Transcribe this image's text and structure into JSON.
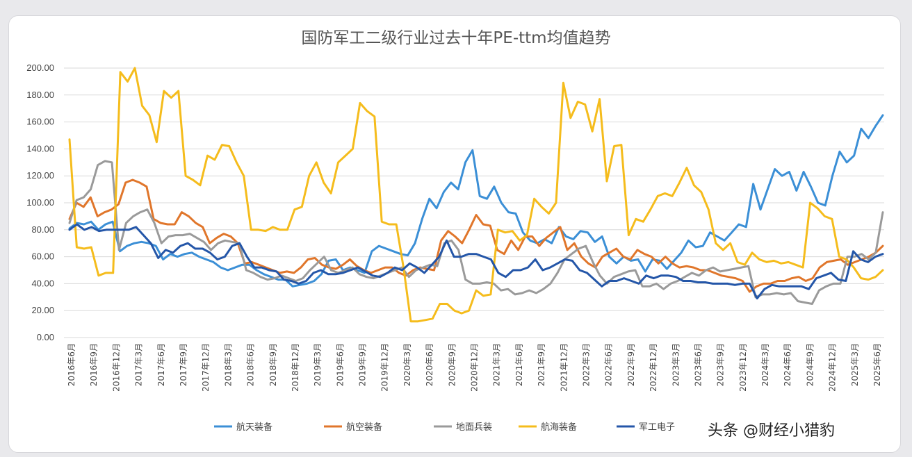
{
  "chart_data": {
    "type": "line",
    "title": "国防军工二级行业过去十年PE-ttm均值趋势",
    "ylim": [
      0,
      200
    ],
    "yticks": [
      "0.00",
      "20.00",
      "40.00",
      "60.00",
      "80.00",
      "100.00",
      "120.00",
      "140.00",
      "160.00",
      "180.00",
      "200.00"
    ],
    "grid": "horizontal",
    "legend_position": "bottom",
    "x_tick_labels": [
      "2016年6月",
      "2016年9月",
      "2016年12月",
      "2017年3月",
      "2017年6月",
      "2017年9月",
      "2017年12月",
      "2018年3月",
      "2018年6月",
      "2018年9月",
      "2018年12月",
      "2019年3月",
      "2019年6月",
      "2019年9月",
      "2019年12月",
      "2020年3月",
      "2020年6月",
      "2020年9月",
      "2020年12月",
      "2021年3月",
      "2021年6月",
      "2021年9月",
      "2021年12月",
      "2022年3月",
      "2022年6月",
      "2022年9月",
      "2022年12月",
      "2023年3月",
      "2023年6月",
      "2023年9月",
      "2023年12月",
      "2024年3月",
      "2024年6月",
      "2024年9月",
      "2024年12月",
      "2025年3月",
      "2025年6月"
    ],
    "series": [
      {
        "name": "航天装备",
        "color": "#3b8fd6",
        "values": [
          81,
          85,
          84,
          86,
          80,
          84,
          86,
          64,
          68,
          70,
          71,
          70,
          68,
          58,
          62,
          60,
          62,
          63,
          60,
          58,
          56,
          52,
          50,
          52,
          54,
          54,
          50,
          47,
          45,
          43,
          43,
          38,
          39,
          40,
          42,
          47,
          57,
          58,
          50,
          52,
          50,
          48,
          64,
          68,
          66,
          64,
          62,
          61,
          70,
          88,
          103,
          96,
          108,
          115,
          110,
          130,
          139,
          105,
          103,
          112,
          100,
          93,
          92,
          78,
          72,
          70,
          73,
          70,
          82,
          75,
          73,
          79,
          78,
          71,
          75,
          60,
          55,
          60,
          57,
          58,
          49,
          58,
          57,
          51,
          57,
          63,
          72,
          67,
          68,
          78,
          75,
          72,
          78,
          84,
          82,
          114,
          95,
          110,
          125,
          120,
          123,
          109,
          123,
          112,
          100,
          98,
          120,
          138,
          130,
          135,
          155,
          148,
          157,
          165
        ]
      },
      {
        "name": "航空装备",
        "color": "#e0762b",
        "values": [
          88,
          100,
          97,
          104,
          90,
          93,
          95,
          99,
          115,
          117,
          115,
          112,
          88,
          85,
          84,
          84,
          93,
          90,
          85,
          82,
          70,
          74,
          77,
          75,
          70,
          55,
          56,
          54,
          52,
          50,
          48,
          49,
          48,
          52,
          58,
          59,
          54,
          52,
          51,
          54,
          58,
          53,
          50,
          48,
          50,
          52,
          52,
          48,
          46,
          50,
          52,
          51,
          50,
          72,
          79,
          75,
          70,
          80,
          91,
          84,
          83,
          65,
          62,
          72,
          65,
          75,
          75,
          68,
          74,
          78,
          82,
          65,
          70,
          60,
          55,
          52,
          60,
          63,
          66,
          60,
          58,
          65,
          62,
          60,
          55,
          60,
          55,
          52,
          53,
          52,
          50,
          50,
          48,
          46,
          45,
          44,
          42,
          34,
          38,
          40,
          40,
          42,
          42,
          44,
          45,
          42,
          44,
          52,
          56,
          57,
          58,
          54,
          56,
          58,
          60,
          63,
          68
        ]
      },
      {
        "name": "地面兵装",
        "color": "#9a9a9a",
        "values": [
          85,
          102,
          104,
          110,
          128,
          131,
          130,
          65,
          85,
          90,
          93,
          95,
          85,
          70,
          75,
          76,
          76,
          77,
          74,
          71,
          65,
          70,
          72,
          71,
          70,
          50,
          48,
          45,
          43,
          44,
          46,
          44,
          42,
          44,
          50,
          55,
          60,
          50,
          48,
          50,
          52,
          47,
          45,
          44,
          46,
          48,
          50,
          52,
          45,
          50,
          52,
          54,
          53,
          70,
          72,
          65,
          43,
          40,
          40,
          41,
          40,
          35,
          36,
          32,
          33,
          35,
          33,
          36,
          40,
          48,
          58,
          62,
          66,
          68,
          56,
          46,
          40,
          45,
          47,
          49,
          50,
          38,
          38,
          40,
          36,
          40,
          42,
          45,
          48,
          46,
          50,
          52,
          49,
          50,
          51,
          52,
          53,
          30,
          32,
          32,
          33,
          32,
          33,
          27,
          26,
          25,
          35,
          38,
          40,
          40,
          60,
          60,
          62,
          58,
          63,
          93
        ]
      },
      {
        "name": "航海装备",
        "color": "#f5bc1c",
        "values": [
          147,
          67,
          66,
          67,
          46,
          48,
          48,
          197,
          190,
          200,
          172,
          165,
          145,
          183,
          178,
          183,
          120,
          117,
          113,
          135,
          132,
          143,
          142,
          130,
          120,
          80,
          80,
          79,
          82,
          80,
          80,
          95,
          97,
          120,
          130,
          115,
          107,
          130,
          135,
          140,
          174,
          168,
          164,
          86,
          84,
          84,
          52,
          12,
          12,
          13,
          14,
          25,
          25,
          20,
          18,
          20,
          35,
          31,
          32,
          80,
          78,
          79,
          72,
          76,
          103,
          97,
          92,
          100,
          189,
          163,
          175,
          173,
          153,
          177,
          116,
          142,
          143,
          76,
          88,
          86,
          95,
          105,
          107,
          105,
          115,
          126,
          113,
          108,
          95,
          70,
          65,
          70,
          56,
          54,
          63,
          58,
          56,
          57,
          55,
          56,
          54,
          52,
          100,
          96,
          90,
          88,
          60,
          58,
          52,
          44,
          43,
          45,
          50
        ]
      },
      {
        "name": "军工电子",
        "color": "#2456a8",
        "values": [
          80,
          84,
          80,
          82,
          79,
          80,
          80,
          80,
          80,
          82,
          76,
          70,
          59,
          65,
          63,
          68,
          70,
          66,
          66,
          63,
          58,
          60,
          68,
          70,
          60,
          52,
          52,
          50,
          49,
          43,
          42,
          40,
          42,
          48,
          50,
          47,
          47,
          48,
          50,
          52,
          49,
          46,
          45,
          48,
          52,
          50,
          55,
          52,
          48,
          54,
          60,
          72,
          60,
          60,
          62,
          62,
          60,
          58,
          48,
          45,
          50,
          50,
          52,
          58,
          50,
          52,
          55,
          58,
          57,
          50,
          48,
          43,
          38,
          42,
          42,
          44,
          42,
          40,
          46,
          44,
          46,
          46,
          45,
          42,
          42,
          41,
          41,
          40,
          40,
          40,
          39,
          40,
          40,
          29,
          36,
          39,
          38,
          38,
          38,
          38,
          36,
          44,
          46,
          48,
          43,
          42,
          64,
          58,
          56,
          60,
          62
        ]
      }
    ]
  },
  "watermark": "头条 @财经小猎豹"
}
